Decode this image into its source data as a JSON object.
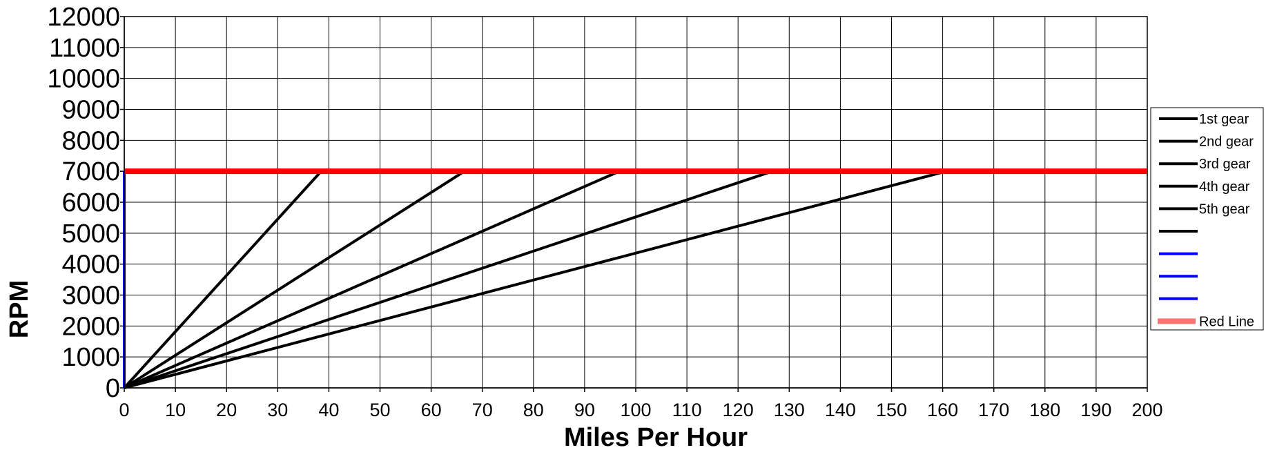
{
  "chart_data": {
    "type": "line",
    "xlabel": "Miles Per Hour",
    "ylabel": "RPM",
    "xlim": [
      0,
      200
    ],
    "ylim": [
      0,
      12000
    ],
    "x_ticks": [
      "0",
      "10",
      "20",
      "30",
      "40",
      "50",
      "60",
      "70",
      "80",
      "90",
      "100",
      "110",
      "120",
      "130",
      "140",
      "150",
      "160",
      "170",
      "180",
      "190",
      "200"
    ],
    "y_ticks": [
      "0",
      "1000",
      "2000",
      "3000",
      "4000",
      "5000",
      "6000",
      "7000",
      "8000",
      "9000",
      "10000",
      "11000",
      "12000"
    ],
    "grid": true,
    "legend_position": "right",
    "series": [
      {
        "name": "1st gear",
        "color": "#000000",
        "style": "solid",
        "x": [
          0,
          38.5
        ],
        "y": [
          0,
          7000
        ]
      },
      {
        "name": "2nd gear",
        "color": "#000000",
        "style": "solid",
        "x": [
          0,
          66.5
        ],
        "y": [
          0,
          7000
        ]
      },
      {
        "name": "3rd gear",
        "color": "#000000",
        "style": "solid",
        "x": [
          0,
          96.8
        ],
        "y": [
          0,
          7000
        ]
      },
      {
        "name": "4th gear",
        "color": "#000000",
        "style": "solid",
        "x": [
          0,
          126.7
        ],
        "y": [
          0,
          7000
        ]
      },
      {
        "name": "5th gear",
        "color": "#000000",
        "style": "solid",
        "x": [
          0,
          160.7
        ],
        "y": [
          0,
          7000
        ]
      },
      {
        "name": "",
        "color": "#000000",
        "style": "solid",
        "x": [],
        "y": []
      },
      {
        "name": "",
        "color": "#0000ff",
        "style": "solid",
        "x": [
          0,
          0
        ],
        "y": [
          0,
          7000
        ]
      },
      {
        "name": "",
        "color": "#0000ff",
        "style": "solid",
        "x": [],
        "y": []
      },
      {
        "name": "",
        "color": "#0000ff",
        "style": "solid",
        "x": [],
        "y": []
      },
      {
        "name": "Red Line",
        "color": "#ff0000",
        "style": "thick",
        "x": [
          0,
          200
        ],
        "y": [
          7000,
          7000
        ]
      }
    ]
  }
}
